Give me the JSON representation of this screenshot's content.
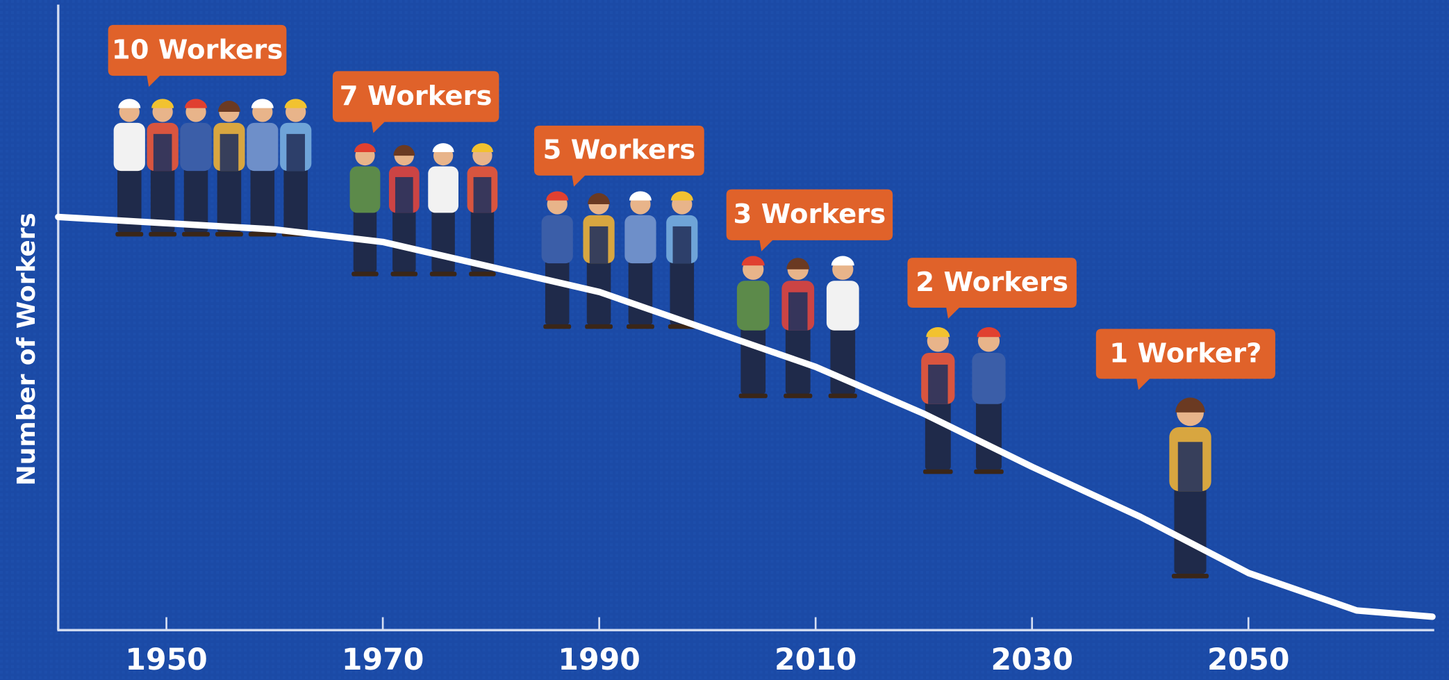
{
  "chart_data": {
    "type": "line",
    "y_label": "Number of Workers",
    "x": [
      1940,
      1945,
      1950,
      1960,
      1970,
      1980,
      1990,
      2000,
      2010,
      2020,
      2030,
      2040,
      2050,
      2060,
      2067
    ],
    "values": [
      66,
      65.5,
      65,
      64,
      62,
      58,
      54,
      48,
      42,
      34.5,
      26,
      18,
      9,
      3,
      2
    ],
    "color": "#ffffff",
    "xlim": [
      1940,
      2067
    ],
    "xticks": [
      1950,
      1970,
      1990,
      2010,
      2030,
      2050
    ],
    "ylim": [
      0,
      100
    ],
    "annotations": [
      "10 Workers",
      "7 Workers",
      "5 Workers",
      "3 Workers",
      "2 Workers",
      "1 Worker?"
    ]
  }
}
